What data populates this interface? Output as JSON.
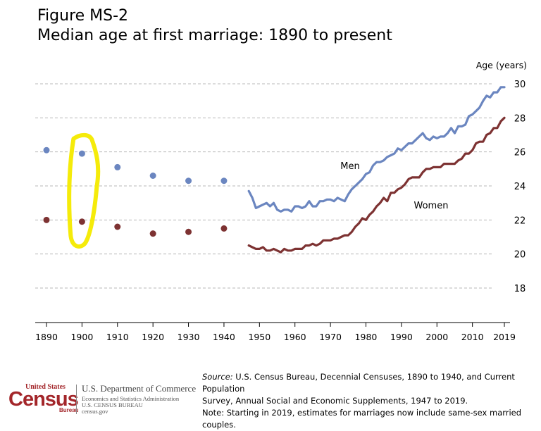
{
  "figure": {
    "title_line1": "Figure MS-2",
    "title_line2": "Median age at first marriage: 1890 to present"
  },
  "colors": {
    "men": "#6b86c0",
    "women": "#7d3232",
    "grid": "#b8b8b8",
    "highlight": "#f5eb0a"
  },
  "chart_data": {
    "type": "line",
    "title": "Median age at first marriage: 1890 to present",
    "ylabel": "Age (years)",
    "xlabel": "",
    "xlim": [
      1890,
      2019
    ],
    "ylim": [
      16,
      30
    ],
    "x_ticks": [
      1890,
      1900,
      1910,
      1920,
      1930,
      1940,
      1950,
      1960,
      1970,
      1980,
      1990,
      2000,
      2010,
      2019
    ],
    "y_ticks": [
      18,
      20,
      22,
      24,
      26,
      28,
      30
    ],
    "grid": "horizontal dashed",
    "series": [
      {
        "name": "Men",
        "decennial_points": [
          [
            1890,
            26.1
          ],
          [
            1900,
            25.9
          ],
          [
            1910,
            25.1
          ],
          [
            1920,
            24.6
          ],
          [
            1930,
            24.3
          ],
          [
            1940,
            24.3
          ]
        ],
        "annual_line": [
          [
            1947,
            23.7
          ],
          [
            1948,
            23.3
          ],
          [
            1949,
            22.7
          ],
          [
            1950,
            22.8
          ],
          [
            1951,
            22.9
          ],
          [
            1952,
            23.0
          ],
          [
            1953,
            22.8
          ],
          [
            1954,
            23.0
          ],
          [
            1955,
            22.6
          ],
          [
            1956,
            22.5
          ],
          [
            1957,
            22.6
          ],
          [
            1958,
            22.6
          ],
          [
            1959,
            22.5
          ],
          [
            1960,
            22.8
          ],
          [
            1961,
            22.8
          ],
          [
            1962,
            22.7
          ],
          [
            1963,
            22.8
          ],
          [
            1964,
            23.1
          ],
          [
            1965,
            22.8
          ],
          [
            1966,
            22.8
          ],
          [
            1967,
            23.1
          ],
          [
            1968,
            23.1
          ],
          [
            1969,
            23.2
          ],
          [
            1970,
            23.2
          ],
          [
            1971,
            23.1
          ],
          [
            1972,
            23.3
          ],
          [
            1973,
            23.2
          ],
          [
            1974,
            23.1
          ],
          [
            1975,
            23.5
          ],
          [
            1976,
            23.8
          ],
          [
            1977,
            24.0
          ],
          [
            1978,
            24.2
          ],
          [
            1979,
            24.4
          ],
          [
            1980,
            24.7
          ],
          [
            1981,
            24.8
          ],
          [
            1982,
            25.2
          ],
          [
            1983,
            25.4
          ],
          [
            1984,
            25.4
          ],
          [
            1985,
            25.5
          ],
          [
            1986,
            25.7
          ],
          [
            1987,
            25.8
          ],
          [
            1988,
            25.9
          ],
          [
            1989,
            26.2
          ],
          [
            1990,
            26.1
          ],
          [
            1991,
            26.3
          ],
          [
            1992,
            26.5
          ],
          [
            1993,
            26.5
          ],
          [
            1994,
            26.7
          ],
          [
            1995,
            26.9
          ],
          [
            1996,
            27.1
          ],
          [
            1997,
            26.8
          ],
          [
            1998,
            26.7
          ],
          [
            1999,
            26.9
          ],
          [
            2000,
            26.8
          ],
          [
            2001,
            26.9
          ],
          [
            2002,
            26.9
          ],
          [
            2003,
            27.1
          ],
          [
            2004,
            27.4
          ],
          [
            2005,
            27.1
          ],
          [
            2006,
            27.5
          ],
          [
            2007,
            27.5
          ],
          [
            2008,
            27.6
          ],
          [
            2009,
            28.1
          ],
          [
            2010,
            28.2
          ],
          [
            2011,
            28.4
          ],
          [
            2012,
            28.6
          ],
          [
            2013,
            29.0
          ],
          [
            2014,
            29.3
          ],
          [
            2015,
            29.2
          ],
          [
            2016,
            29.5
          ],
          [
            2017,
            29.5
          ],
          [
            2018,
            29.8
          ],
          [
            2019,
            29.8
          ]
        ]
      },
      {
        "name": "Women",
        "decennial_points": [
          [
            1890,
            22.0
          ],
          [
            1900,
            21.9
          ],
          [
            1910,
            21.6
          ],
          [
            1920,
            21.2
          ],
          [
            1930,
            21.3
          ],
          [
            1940,
            21.5
          ]
        ],
        "annual_line": [
          [
            1947,
            20.5
          ],
          [
            1948,
            20.4
          ],
          [
            1949,
            20.3
          ],
          [
            1950,
            20.3
          ],
          [
            1951,
            20.4
          ],
          [
            1952,
            20.2
          ],
          [
            1953,
            20.2
          ],
          [
            1954,
            20.3
          ],
          [
            1955,
            20.2
          ],
          [
            1956,
            20.1
          ],
          [
            1957,
            20.3
          ],
          [
            1958,
            20.2
          ],
          [
            1959,
            20.2
          ],
          [
            1960,
            20.3
          ],
          [
            1961,
            20.3
          ],
          [
            1962,
            20.3
          ],
          [
            1963,
            20.5
          ],
          [
            1964,
            20.5
          ],
          [
            1965,
            20.6
          ],
          [
            1966,
            20.5
          ],
          [
            1967,
            20.6
          ],
          [
            1968,
            20.8
          ],
          [
            1969,
            20.8
          ],
          [
            1970,
            20.8
          ],
          [
            1971,
            20.9
          ],
          [
            1972,
            20.9
          ],
          [
            1973,
            21.0
          ],
          [
            1974,
            21.1
          ],
          [
            1975,
            21.1
          ],
          [
            1976,
            21.3
          ],
          [
            1977,
            21.6
          ],
          [
            1978,
            21.8
          ],
          [
            1979,
            22.1
          ],
          [
            1980,
            22.0
          ],
          [
            1981,
            22.3
          ],
          [
            1982,
            22.5
          ],
          [
            1983,
            22.8
          ],
          [
            1984,
            23.0
          ],
          [
            1985,
            23.3
          ],
          [
            1986,
            23.1
          ],
          [
            1987,
            23.6
          ],
          [
            1988,
            23.6
          ],
          [
            1989,
            23.8
          ],
          [
            1990,
            23.9
          ],
          [
            1991,
            24.1
          ],
          [
            1992,
            24.4
          ],
          [
            1993,
            24.5
          ],
          [
            1994,
            24.5
          ],
          [
            1995,
            24.5
          ],
          [
            1996,
            24.8
          ],
          [
            1997,
            25.0
          ],
          [
            1998,
            25.0
          ],
          [
            1999,
            25.1
          ],
          [
            2000,
            25.1
          ],
          [
            2001,
            25.1
          ],
          [
            2002,
            25.3
          ],
          [
            2003,
            25.3
          ],
          [
            2004,
            25.3
          ],
          [
            2005,
            25.3
          ],
          [
            2006,
            25.5
          ],
          [
            2007,
            25.6
          ],
          [
            2008,
            25.9
          ],
          [
            2009,
            25.9
          ],
          [
            2010,
            26.1
          ],
          [
            2011,
            26.5
          ],
          [
            2012,
            26.6
          ],
          [
            2013,
            26.6
          ],
          [
            2014,
            27.0
          ],
          [
            2015,
            27.1
          ],
          [
            2016,
            27.4
          ],
          [
            2017,
            27.4
          ],
          [
            2018,
            27.8
          ],
          [
            2019,
            28.0
          ]
        ]
      }
    ],
    "annotations": [
      "Men",
      "Women"
    ],
    "highlight": {
      "shape": "hand-drawn ellipse",
      "around": 1900,
      "color": "yellow"
    }
  },
  "source": {
    "label": "Source:",
    "line1": " U.S. Census Bureau, Decennial Censuses,  1890 to 1940, and Current Population",
    "line2": "Survey, Annual Social and Economic Supplements, 1947 to 2019.",
    "note": "Note: Starting in 2019, estimates for marriages now include same-sex married couples."
  },
  "logo": {
    "top": "United States",
    "word": "Census",
    "bureau": "Bureau",
    "dept": "U.S. Department of Commerce",
    "sub1": "Economics and Statistics Administration",
    "sub2": "U.S. CENSUS BUREAU",
    "sub3": "census.gov"
  }
}
